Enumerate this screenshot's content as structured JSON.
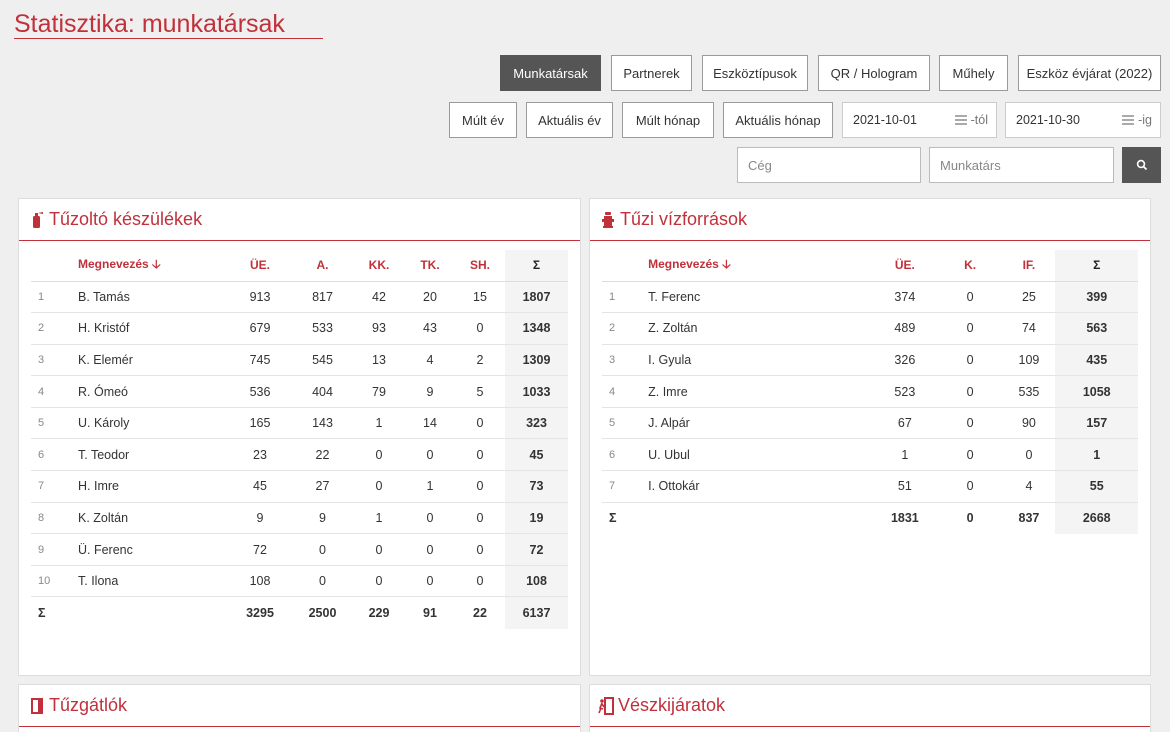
{
  "page": {
    "title": "Statisztika: munkatársak"
  },
  "tabs": [
    {
      "label": "Munkatársak",
      "active": true
    },
    {
      "label": "Partnerek"
    },
    {
      "label": "Eszköztípusok"
    },
    {
      "label": "QR / Hologram"
    },
    {
      "label": "Műhely"
    },
    {
      "label": "Eszköz évjárat (2022)"
    }
  ],
  "period_buttons": [
    "Múlt év",
    "Aktuális év",
    "Múlt hónap",
    "Aktuális hónap"
  ],
  "date_from": {
    "value": "2021-10-01",
    "suffix": "-tól"
  },
  "date_to": {
    "value": "2021-10-30",
    "suffix": "-ig"
  },
  "filters": {
    "company_placeholder": "Cég",
    "employee_placeholder": "Munkatárs"
  },
  "colors": {
    "accent": "#c0313b",
    "active_button": "#555555"
  },
  "fire_extinguishers": {
    "title": "Tűzoltó készülékek",
    "icon": "fire-extinguisher-icon",
    "columns": [
      "Megnevezés",
      "ÜE.",
      "A.",
      "KK.",
      "TK.",
      "SH.",
      "Σ"
    ],
    "sort_icon": "arrow-down-icon",
    "rows": [
      [
        "1",
        "B. Tamás",
        "913",
        "817",
        "42",
        "20",
        "15",
        "1807"
      ],
      [
        "2",
        "H. Kristóf",
        "679",
        "533",
        "93",
        "43",
        "0",
        "1348"
      ],
      [
        "3",
        "K. Elemér",
        "745",
        "545",
        "13",
        "4",
        "2",
        "1309"
      ],
      [
        "4",
        "R. Ómeó",
        "536",
        "404",
        "79",
        "9",
        "5",
        "1033"
      ],
      [
        "5",
        "U. Károly",
        "165",
        "143",
        "1",
        "14",
        "0",
        "323"
      ],
      [
        "6",
        "T. Teodor",
        "23",
        "22",
        "0",
        "0",
        "0",
        "45"
      ],
      [
        "7",
        "H. Imre",
        "45",
        "27",
        "0",
        "1",
        "0",
        "73"
      ],
      [
        "8",
        "K. Zoltán",
        "9",
        "9",
        "1",
        "0",
        "0",
        "19"
      ],
      [
        "9",
        "Ü. Ferenc",
        "72",
        "0",
        "0",
        "0",
        "0",
        "72"
      ],
      [
        "10",
        "T. Ilona",
        "108",
        "0",
        "0",
        "0",
        "0",
        "108"
      ]
    ],
    "total": [
      "Σ",
      "",
      "3295",
      "2500",
      "229",
      "91",
      "22",
      "6137"
    ]
  },
  "fire_hydrants": {
    "title": "Tűzi vízforrások",
    "icon": "fire-hydrant-icon",
    "columns": [
      "Megnevezés",
      "ÜE.",
      "K.",
      "IF.",
      "Σ"
    ],
    "sort_icon": "arrow-down-icon",
    "rows": [
      [
        "1",
        "T. Ferenc",
        "374",
        "0",
        "25",
        "399"
      ],
      [
        "2",
        "Z. Zoltán",
        "489",
        "0",
        "74",
        "563"
      ],
      [
        "3",
        "I. Gyula",
        "326",
        "0",
        "109",
        "435"
      ],
      [
        "4",
        "Z. Imre",
        "523",
        "0",
        "535",
        "1058"
      ],
      [
        "5",
        "J. Alpár",
        "67",
        "0",
        "90",
        "157"
      ],
      [
        "6",
        "U. Ubul",
        "1",
        "0",
        "0",
        "1"
      ],
      [
        "7",
        "I. Ottokár",
        "51",
        "0",
        "4",
        "55"
      ]
    ],
    "total": [
      "Σ",
      "",
      "1831",
      "0",
      "837",
      "2668"
    ]
  },
  "fire_doors": {
    "title": "Tűzgátlók",
    "icon": "fire-door-icon"
  },
  "emergency_exits": {
    "title": "Vészkijáratok",
    "icon": "emergency-exit-icon"
  }
}
